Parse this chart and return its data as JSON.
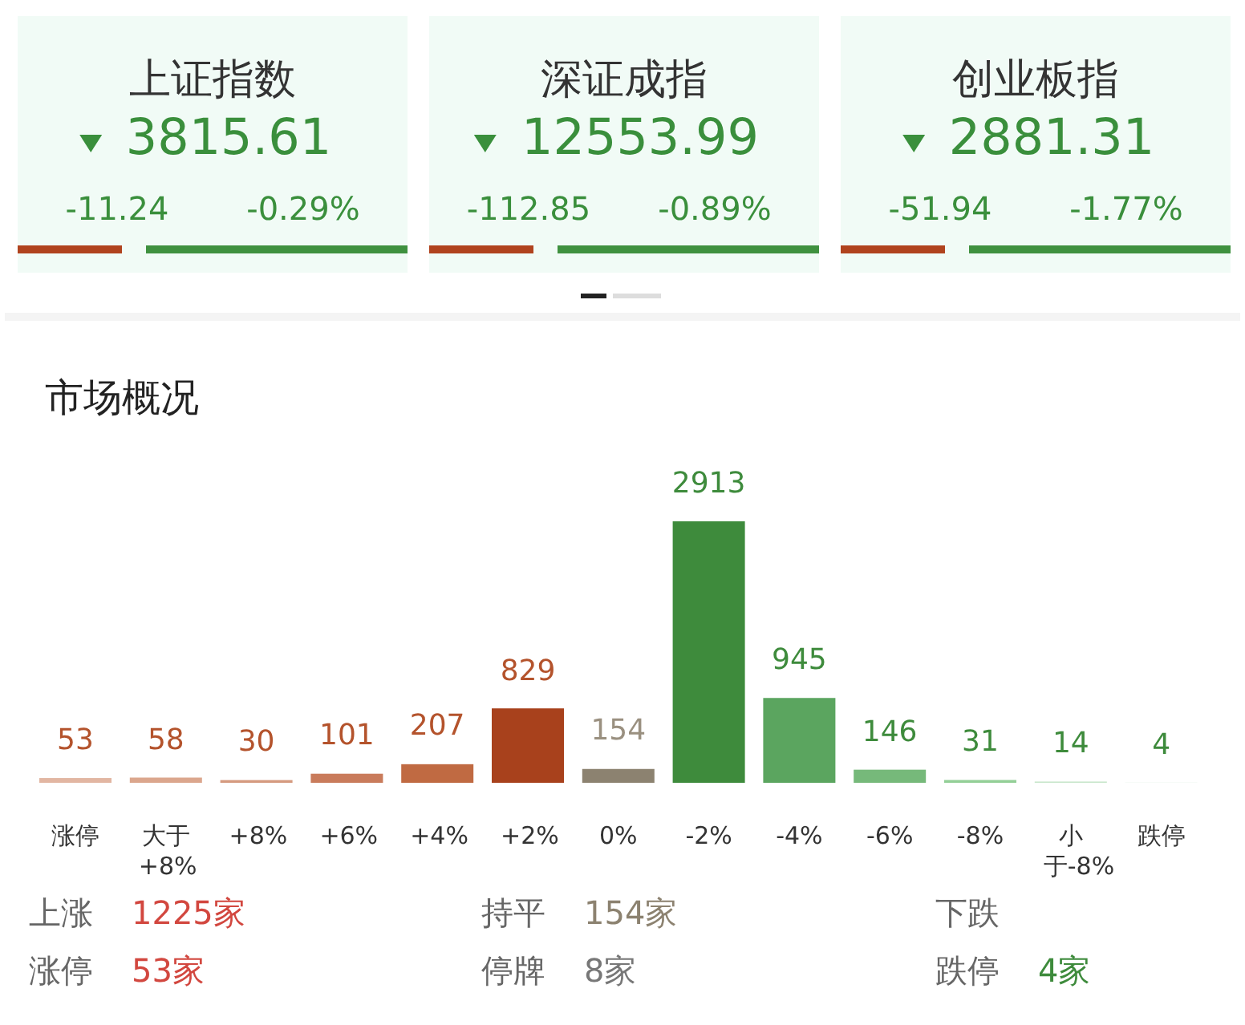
{
  "chart_data": [
    {
      "type": "other",
      "annotations": [
        "上证指数",
        "3815.61",
        "-11.24",
        "-0.29%",
        "深证成指",
        "12553.99",
        "-112.85",
        "-0.89%",
        "创业板指",
        "2881.31",
        "-51.94",
        "-1.77%"
      ]
    },
    {
      "type": "bar",
      "title": "市场概况",
      "categories": [
        "涨停",
        "大于+8%",
        "+8%",
        "+6%",
        "+4%",
        "+2%",
        "0%",
        "-2%",
        "-4%",
        "-6%",
        "-8%",
        "小于-8%",
        "跌停"
      ],
      "values": [
        53,
        58,
        30,
        101,
        207,
        829,
        154,
        2913,
        945,
        146,
        31,
        14,
        4
      ],
      "colors": [
        "#e2b6a2",
        "#dba68d",
        "#d59a7f",
        "#c97b5b",
        "#c06a42",
        "#a8411c",
        "#8c8270",
        "#3e8b3c",
        "#5ba55f",
        "#76b97a",
        "#93cf97",
        "#c8e6cb",
        "#eef5ef"
      ],
      "data_labels": true,
      "annotations": [
        "上涨",
        "1225家",
        "持平",
        "154家",
        "下跌",
        null,
        "涨停",
        "53家",
        "停牌",
        "8家",
        "跌停",
        "4家"
      ]
    }
  ]
}
